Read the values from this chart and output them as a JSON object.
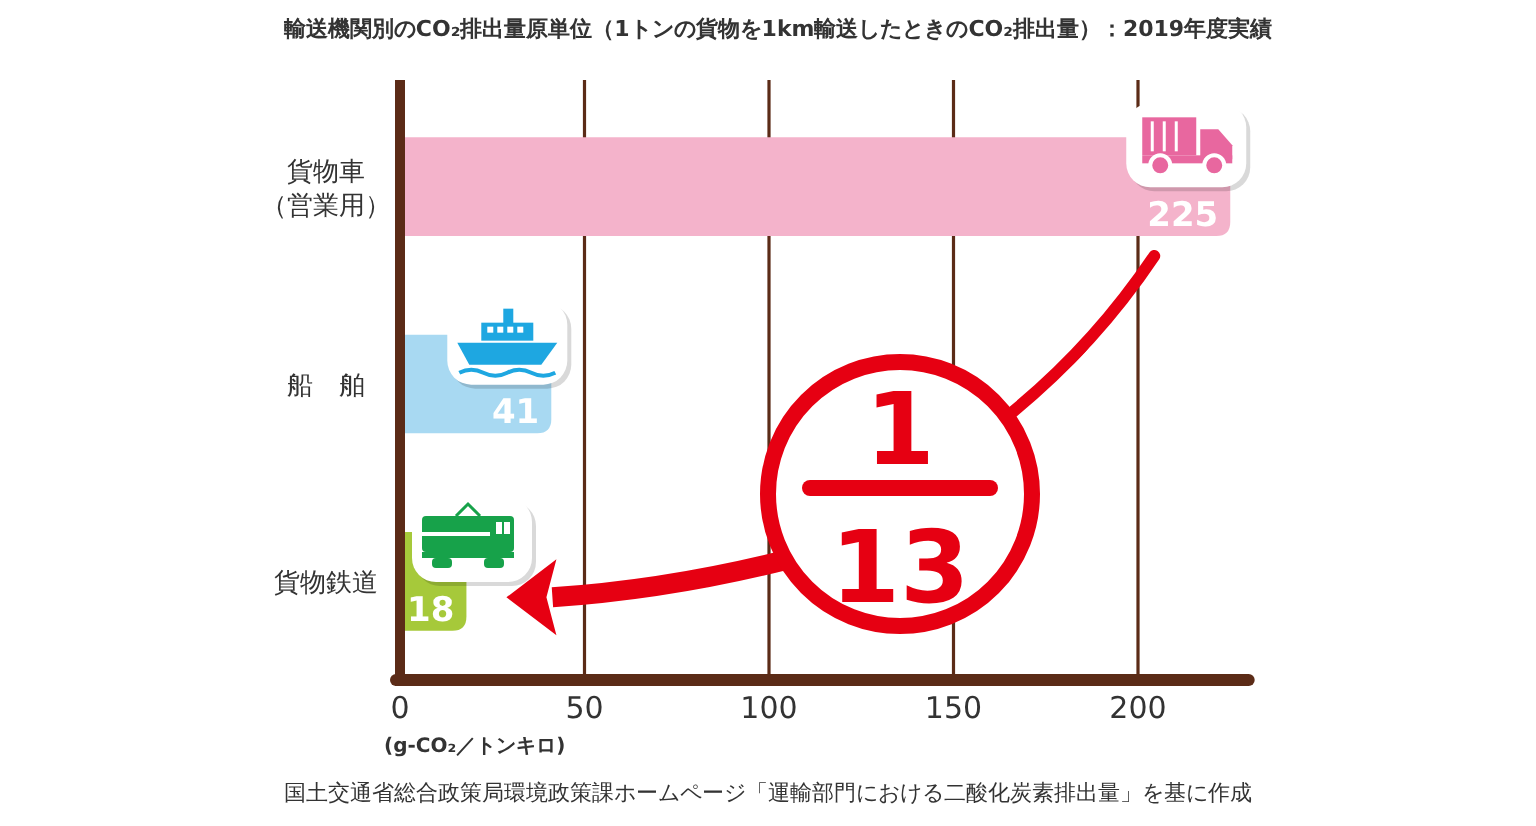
{
  "chart_data": {
    "type": "bar",
    "orientation": "horizontal",
    "title": "輸送機関別のCO₂排出量原単位（1トンの貨物を1km輸送したときのCO₂排出量）：2019年度実績",
    "xlabel": "(g-CO₂／トンキロ)",
    "categories": [
      "貨物車（営業用）",
      "船　舶",
      "貨物鉄道"
    ],
    "values": [
      225,
      41,
      18
    ],
    "colors": [
      "#f4b3cb",
      "#a8d9f2",
      "#a6c93a"
    ],
    "data_labels": true,
    "xlim": [
      0,
      230
    ],
    "xticks": [
      0,
      50,
      100,
      150,
      200
    ],
    "grid": "x",
    "annotations": [
      "1",
      "13",
      "国土交通省総合政策局環境政策課ホームページ「運輸部門における二酸化炭素排出量」を基に作成"
    ]
  }
}
